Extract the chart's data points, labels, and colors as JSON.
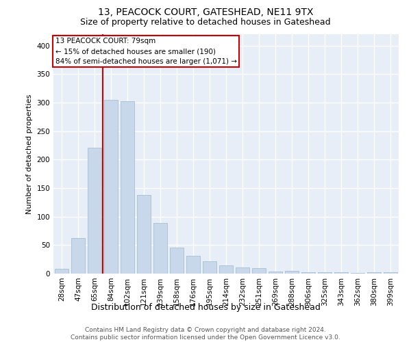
{
  "title": "13, PEACOCK COURT, GATESHEAD, NE11 9TX",
  "subtitle": "Size of property relative to detached houses in Gateshead",
  "xlabel": "Distribution of detached houses by size in Gateshead",
  "ylabel": "Number of detached properties",
  "categories": [
    "28sqm",
    "47sqm",
    "65sqm",
    "84sqm",
    "102sqm",
    "121sqm",
    "139sqm",
    "158sqm",
    "176sqm",
    "195sqm",
    "214sqm",
    "232sqm",
    "251sqm",
    "269sqm",
    "288sqm",
    "306sqm",
    "325sqm",
    "343sqm",
    "362sqm",
    "380sqm",
    "399sqm"
  ],
  "values": [
    9,
    63,
    221,
    305,
    303,
    138,
    89,
    46,
    31,
    22,
    15,
    11,
    10,
    4,
    5,
    3,
    2,
    2,
    1,
    3,
    3
  ],
  "bar_color": "#c8d8ea",
  "bar_edge_color": "#9ab8cc",
  "vline_color": "#cc0000",
  "vline_x_index": 2.5,
  "annotation_line1": "13 PEACOCK COURT: 79sqm",
  "annotation_line2": "← 15% of detached houses are smaller (190)",
  "annotation_line3": "84% of semi-detached houses are larger (1,071) →",
  "annotation_box_facecolor": "#ffffff",
  "annotation_box_edgecolor": "#cc0000",
  "background_color": "#ffffff",
  "plot_bg_color": "#e8eef8",
  "grid_color": "#ffffff",
  "footer_line1": "Contains HM Land Registry data © Crown copyright and database right 2024.",
  "footer_line2": "Contains public sector information licensed under the Open Government Licence v3.0.",
  "ylim": [
    0,
    420
  ],
  "yticks": [
    0,
    50,
    100,
    150,
    200,
    250,
    300,
    350,
    400
  ],
  "title_fontsize": 10,
  "subtitle_fontsize": 9,
  "ylabel_fontsize": 8,
  "xlabel_fontsize": 9,
  "tick_fontsize": 7.5,
  "footer_fontsize": 6.5,
  "ann_fontsize": 7.5
}
